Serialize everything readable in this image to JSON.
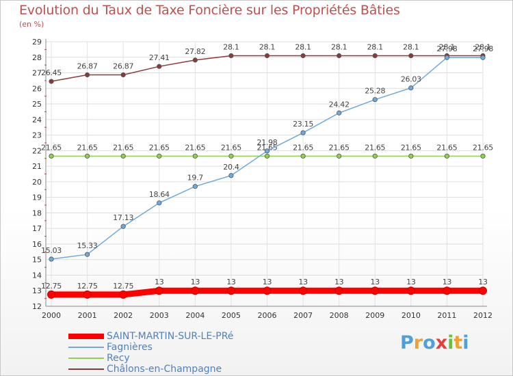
{
  "header": {
    "title": "Evolution du Taux de Taxe Foncière sur les Propriétés Bâties",
    "unit": "(en %)"
  },
  "chart_data": {
    "type": "line",
    "title": "Evolution du Taux de Taxe Foncière sur les Propriétés Bâties",
    "ylabel": "(en %)",
    "xlabel": "",
    "x": [
      2000,
      2001,
      2002,
      2003,
      2004,
      2005,
      2006,
      2007,
      2008,
      2009,
      2010,
      2011,
      2012
    ],
    "ylim": [
      12,
      29
    ],
    "yticks": [
      12,
      13,
      14,
      15,
      16,
      17,
      18,
      19,
      20,
      21,
      22,
      23,
      24,
      25,
      26,
      27,
      28,
      29
    ],
    "grid": true,
    "legend_position": "bottom-left",
    "series": [
      {
        "name": "SAINT-MARTIN-SUR-LE-PRé",
        "color": "#ff0000",
        "values": [
          12.75,
          12.75,
          12.75,
          13,
          13,
          13,
          13,
          13,
          13,
          13,
          13,
          13,
          13
        ],
        "labels": [
          "12.75",
          "12.75",
          "12.75",
          "13",
          "13",
          "13",
          "13",
          "13",
          "13",
          "13",
          "13",
          "13",
          "13"
        ]
      },
      {
        "name": "Fagnières",
        "color": "#6fa8dc",
        "values": [
          15.03,
          15.33,
          17.13,
          18.64,
          19.7,
          20.4,
          21.98,
          23.15,
          24.42,
          25.28,
          26.03,
          27.98,
          27.98
        ],
        "labels": [
          "15.03",
          "15.33",
          "17.13",
          "18.64",
          "19.7",
          "20.4",
          "21.98",
          "23.15",
          "24.42",
          "25.28",
          "26.03",
          "27.98",
          "27.98"
        ]
      },
      {
        "name": "Recy",
        "color": "#8fd14f",
        "values": [
          21.65,
          21.65,
          21.65,
          21.65,
          21.65,
          21.65,
          21.65,
          21.65,
          21.65,
          21.65,
          21.65,
          21.65,
          21.65
        ],
        "labels": [
          "21.65",
          "21.65",
          "21.65",
          "21.65",
          "21.65",
          "21.65",
          "21.65",
          "21.65",
          "21.65",
          "21.65",
          "21.65",
          "21.65",
          "21.65"
        ]
      },
      {
        "name": "Châlons-en-Champagne",
        "color": "#8b3a3a",
        "values": [
          26.45,
          26.87,
          26.87,
          27.41,
          27.82,
          28.1,
          28.1,
          28.1,
          28.1,
          28.1,
          28.1,
          28.1,
          28.1
        ],
        "labels": [
          "26.45",
          "26.87",
          "26.87",
          "27.41",
          "27.82",
          "28.1",
          "28.1",
          "28.1",
          "28.1",
          "28.1",
          "28.1",
          "28.1",
          "28.1"
        ]
      }
    ]
  },
  "logo": {
    "letters": [
      "P",
      "r",
      "o",
      "x",
      "i",
      "t",
      "i"
    ],
    "colors": [
      "#4f9fd8",
      "#f0a030",
      "#4f9fd8",
      "#e04040",
      "#6abf40",
      "#f0a030",
      "#4f9fd8"
    ]
  }
}
